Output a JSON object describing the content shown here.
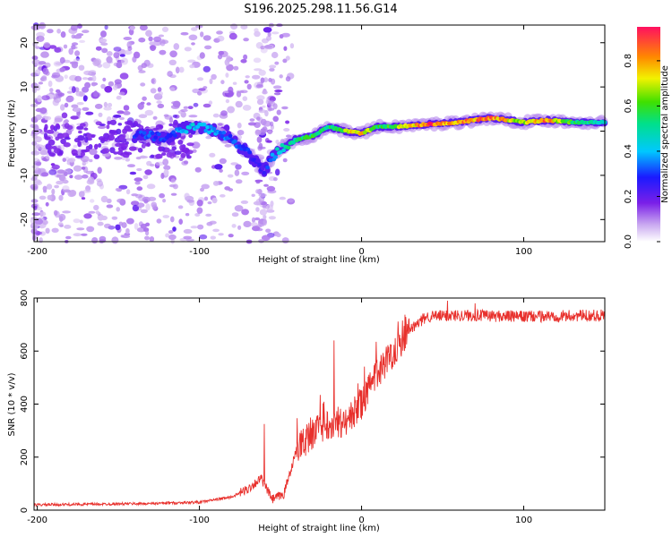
{
  "chart_data": [
    {
      "type": "heatmap",
      "title": "S196.2025.298.11.56.G14",
      "xlabel": "Height of straight line (km)",
      "ylabel": "Frequency (Hz)",
      "xlim": [
        -202,
        150
      ],
      "ylim": [
        -25,
        24
      ],
      "xticks": [
        -200,
        -100,
        0,
        100
      ],
      "yticks": [
        20,
        10,
        0,
        -10,
        -20
      ],
      "colorbar": {
        "label": "Normalized spectral amplitude",
        "range": [
          0.0,
          0.95
        ],
        "ticks": [
          0.0,
          0.2,
          0.4,
          0.6,
          0.8
        ],
        "tick_labels": [
          "0.0",
          "0.2",
          "0.4",
          "0.6",
          "0.8"
        ]
      },
      "ridge": [
        {
          "x": -140,
          "y": -1,
          "a": 0.3
        },
        {
          "x": -130,
          "y": -1,
          "a": 0.35
        },
        {
          "x": -120,
          "y": -1.5,
          "a": 0.3
        },
        {
          "x": -110,
          "y": 0.5,
          "a": 0.4
        },
        {
          "x": -100,
          "y": 1,
          "a": 0.45
        },
        {
          "x": -90,
          "y": 0,
          "a": 0.4
        },
        {
          "x": -80,
          "y": -2,
          "a": 0.35
        },
        {
          "x": -70,
          "y": -5,
          "a": 0.3
        },
        {
          "x": -60,
          "y": -9,
          "a": 0.25
        },
        {
          "x": -55,
          "y": -6,
          "a": 0.4
        },
        {
          "x": -50,
          "y": -4,
          "a": 0.5
        },
        {
          "x": -40,
          "y": -2,
          "a": 0.55
        },
        {
          "x": -30,
          "y": -1,
          "a": 0.6
        },
        {
          "x": -20,
          "y": 1,
          "a": 0.55
        },
        {
          "x": -10,
          "y": 0,
          "a": 0.7
        },
        {
          "x": 0,
          "y": -0.5,
          "a": 0.85
        },
        {
          "x": 10,
          "y": 1,
          "a": 0.6
        },
        {
          "x": 20,
          "y": 1,
          "a": 0.65
        },
        {
          "x": 40,
          "y": 1.5,
          "a": 0.95
        },
        {
          "x": 60,
          "y": 2,
          "a": 0.85
        },
        {
          "x": 80,
          "y": 3,
          "a": 0.9
        },
        {
          "x": 100,
          "y": 2,
          "a": 0.7
        },
        {
          "x": 115,
          "y": 2.5,
          "a": 0.9
        },
        {
          "x": 130,
          "y": 2,
          "a": 0.6
        },
        {
          "x": 150,
          "y": 2,
          "a": 0.5
        }
      ]
    },
    {
      "type": "line",
      "xlabel": "Height of straight line (km)",
      "ylabel": "SNR (10 * v/v)",
      "xlim": [
        -202,
        150
      ],
      "ylim": [
        0,
        800
      ],
      "xticks": [
        -200,
        -100,
        0,
        100
      ],
      "yticks": [
        0,
        200,
        400,
        600,
        800
      ],
      "color": "#e8302c",
      "series_profile": [
        {
          "x": -202,
          "y": 20
        },
        {
          "x": -130,
          "y": 25
        },
        {
          "x": -100,
          "y": 30
        },
        {
          "x": -80,
          "y": 50
        },
        {
          "x": -70,
          "y": 80
        },
        {
          "x": -62,
          "y": 120
        },
        {
          "x": -55,
          "y": 40
        },
        {
          "x": -48,
          "y": 60
        },
        {
          "x": -40,
          "y": 230
        },
        {
          "x": -30,
          "y": 290
        },
        {
          "x": -20,
          "y": 330
        },
        {
          "x": -10,
          "y": 330
        },
        {
          "x": 0,
          "y": 400
        },
        {
          "x": 10,
          "y": 520
        },
        {
          "x": 20,
          "y": 600
        },
        {
          "x": 30,
          "y": 680
        },
        {
          "x": 40,
          "y": 730
        },
        {
          "x": 60,
          "y": 735
        },
        {
          "x": 100,
          "y": 730
        },
        {
          "x": 150,
          "y": 735
        }
      ],
      "spikes": [
        {
          "x": -60,
          "y": 325
        },
        {
          "x": -17,
          "y": 640
        },
        {
          "x": 53,
          "y": 790
        },
        {
          "x": 70,
          "y": 780
        }
      ]
    }
  ]
}
